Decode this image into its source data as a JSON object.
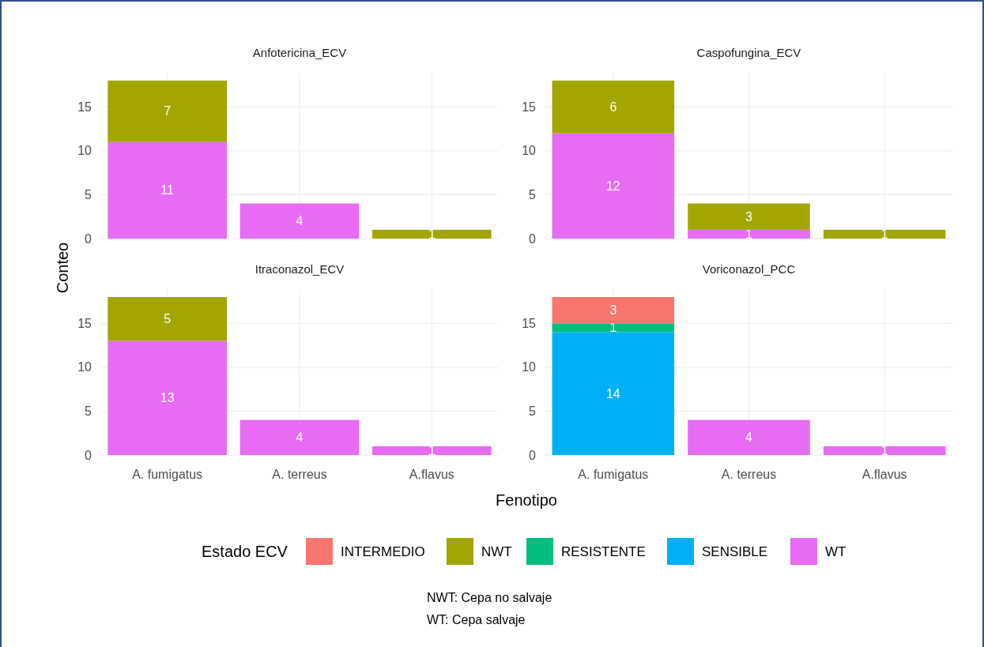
{
  "chart_data": [
    {
      "type": "bar",
      "title": "Anfotericina_ECV",
      "categories": [
        null,
        null,
        null
      ],
      "stacked": true,
      "ylim": [
        0,
        18.9
      ],
      "yticks": [
        0,
        5,
        10,
        15
      ],
      "grid": true,
      "data_labels": true,
      "tick_labels": "y",
      "ylabel": "Conteo",
      "series": [
        {
          "color": "#e76bf3",
          "values": [
            11,
            4,
            null
          ]
        },
        {
          "color": "#a3a500",
          "values": [
            7,
            null,
            1
          ]
        }
      ]
    },
    {
      "type": "bar",
      "title": "Caspofungina_ECV",
      "categories": [
        null,
        null,
        null
      ],
      "stacked": true,
      "ylim": [
        0,
        18.9
      ],
      "yticks": [
        0,
        5,
        10,
        15
      ],
      "grid": true,
      "data_labels": true,
      "tick_labels": "y",
      "series": [
        {
          "color": "#e76bf3",
          "values": [
            12,
            1,
            null
          ]
        },
        {
          "color": "#a3a500",
          "values": [
            6,
            3,
            1
          ]
        }
      ]
    },
    {
      "type": "bar",
      "title": "Itraconazol_ECV",
      "categories": [
        "A. fumigatus",
        "A. terreus",
        "A.flavus"
      ],
      "stacked": true,
      "ylim": [
        0,
        18.9
      ],
      "yticks": [
        0,
        5,
        10,
        15
      ],
      "grid": true,
      "data_labels": true,
      "series": [
        {
          "color": "#e76bf3",
          "values": [
            13,
            4,
            1
          ]
        },
        {
          "color": "#a3a500",
          "values": [
            5,
            null,
            null
          ]
        }
      ]
    },
    {
      "type": "bar",
      "title": "Voriconazol_PCC",
      "categories": [
        "A. fumigatus",
        "A. terreus",
        "A.flavus"
      ],
      "stacked": true,
      "ylim": [
        0,
        18.9
      ],
      "yticks": [
        0,
        5,
        10,
        15
      ],
      "grid": true,
      "data_labels": true,
      "xlabel": "Fenotipo",
      "legend": "bottom",
      "legend_title": "Estado ECV",
      "annotations": [
        "NWT: Cepa no salvaje",
        "WT: Cepa salvaje"
      ],
      "series": [
        {
          "name": "WT",
          "color": "#e76bf3",
          "values": [
            null,
            4,
            1
          ]
        },
        {
          "name": "SENSIBLE",
          "color": "#00b0f6",
          "values": [
            14,
            null,
            null
          ]
        },
        {
          "name": "RESISTENTE",
          "color": "#00bf7d",
          "values": [
            1,
            null,
            null
          ]
        },
        {
          "name": "NWT",
          "color": "#a3a500",
          "values": [
            null,
            null,
            null
          ]
        },
        {
          "name": "INTERMEDIO",
          "color": "#f8766d",
          "values": [
            3,
            null,
            null
          ]
        }
      ]
    }
  ]
}
